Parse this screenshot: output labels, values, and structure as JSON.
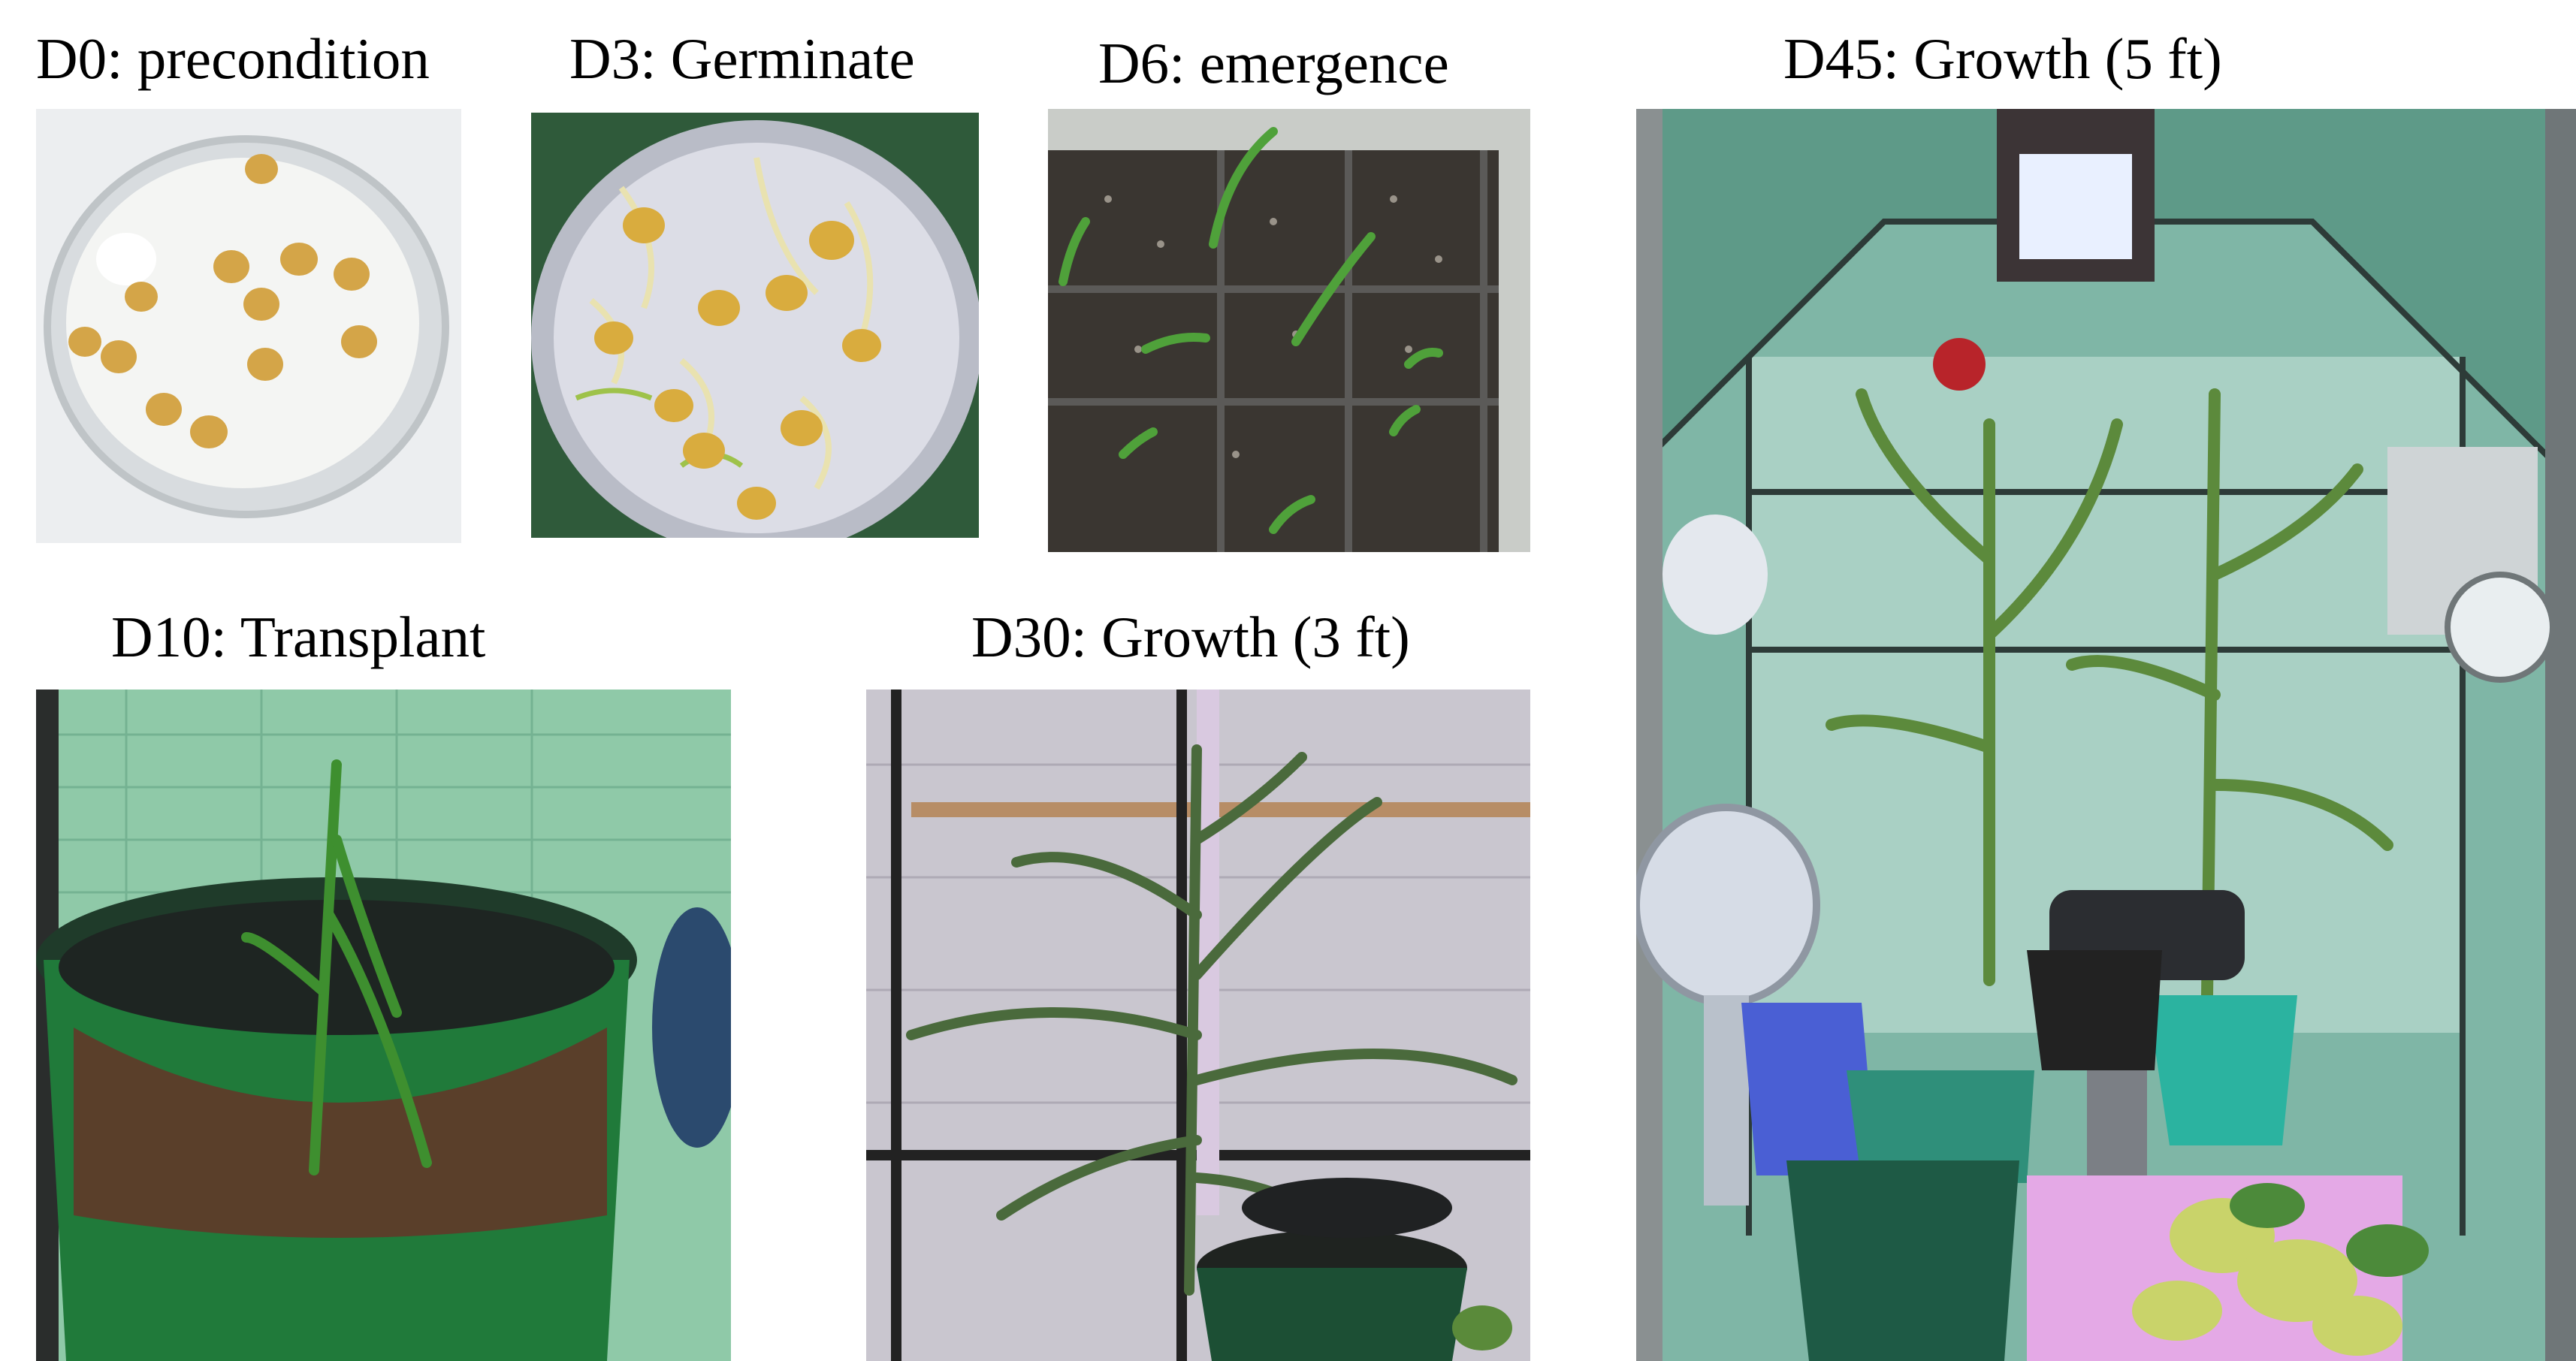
{
  "figure": {
    "panels": [
      {
        "id": "d0",
        "caption": "D0: precondition"
      },
      {
        "id": "d3",
        "caption": "D3: Germinate"
      },
      {
        "id": "d6",
        "caption": "D6: emergence"
      },
      {
        "id": "d45",
        "caption": "D45: Growth (5 ft)"
      },
      {
        "id": "d10",
        "caption": "D10: Transplant"
      },
      {
        "id": "d30",
        "caption": "D30: Growth (3 ft)"
      }
    ]
  }
}
